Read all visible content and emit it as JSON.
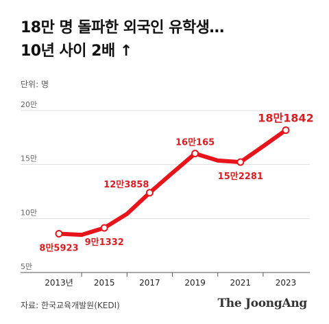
{
  "header": {
    "title_line1": "18만 명 돌파한 외국인 유학생…",
    "title_line2": "10년 사이 2배 ↑",
    "unit_label": "단위: 명"
  },
  "footer": {
    "source": "자료: 한국교육개발원(KEDI)",
    "logo": "The JoongAng"
  },
  "colors": {
    "line": "#e8141c",
    "label": "#d81e23",
    "axis": "#999999",
    "grid": "#dddddd"
  },
  "chart_data": {
    "type": "line",
    "title": "18만 명 돌파한 외국인 유학생… 10년 사이 2배 ↑",
    "ylabel": "단위: 명",
    "ylim": [
      50000,
      200000
    ],
    "y_ticks": [
      {
        "value": 50000,
        "label": "5만"
      },
      {
        "value": 100000,
        "label": "10만"
      },
      {
        "value": 150000,
        "label": "15만"
      },
      {
        "value": 200000,
        "label": "20만"
      }
    ],
    "x_ticks": [
      "2013년",
      "2015",
      "2017",
      "2019",
      "2021",
      "2023"
    ],
    "x": [
      2013,
      2014,
      2015,
      2016,
      2017,
      2018,
      2019,
      2020,
      2021,
      2022,
      2023
    ],
    "values": [
      85923,
      84891,
      91332,
      104262,
      123858,
      142205,
      160165,
      153695,
      152281,
      166892,
      181842
    ],
    "annotations": [
      {
        "year": 2013,
        "label": "8만5923",
        "position": "below"
      },
      {
        "year": 2015,
        "label": "9만1332",
        "position": "below"
      },
      {
        "year": 2017,
        "label": "12만3858",
        "position": "left"
      },
      {
        "year": 2019,
        "label": "16만165",
        "position": "above"
      },
      {
        "year": 2021,
        "label": "15만2281",
        "position": "below"
      },
      {
        "year": 2023,
        "label": "18만1842",
        "position": "above"
      }
    ],
    "grid": true
  }
}
